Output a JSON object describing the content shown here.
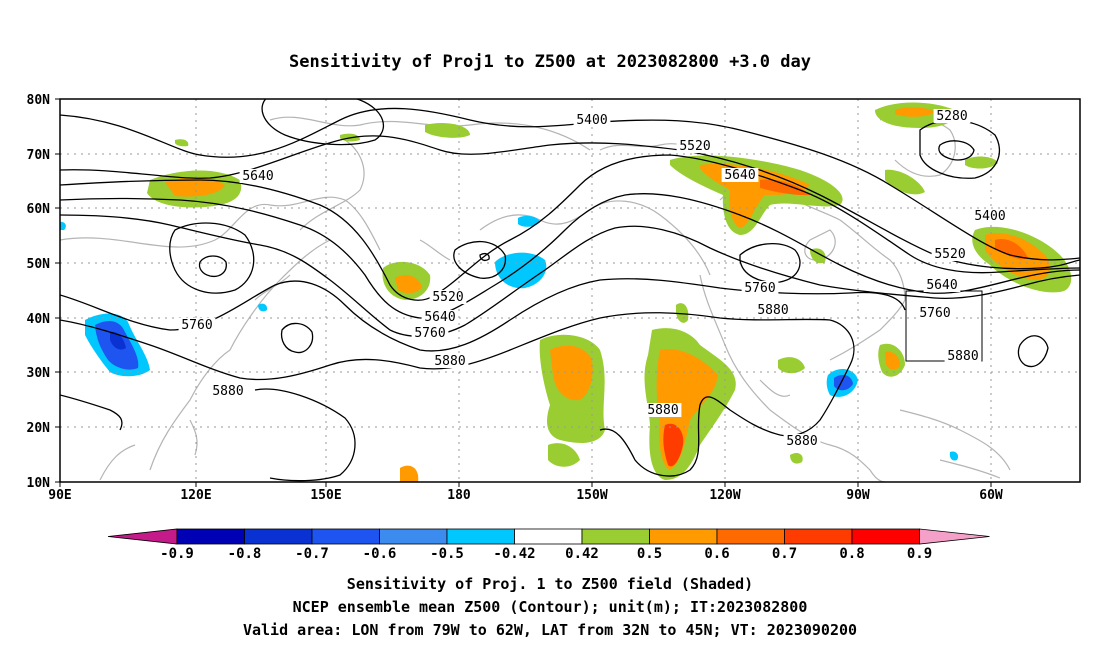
{
  "title": "Sensitivity of Proj1 to Z500 at 2023082800 +3.0 day",
  "lat_ticks": [
    "80N",
    "70N",
    "60N",
    "50N",
    "40N",
    "30N",
    "20N",
    "10N"
  ],
  "lon_ticks": [
    "90E",
    "120E",
    "150E",
    "180",
    "150W",
    "120W",
    "90W",
    "60W"
  ],
  "contour_labels": [
    {
      "id": "c1",
      "text": "5640"
    },
    {
      "id": "c2",
      "text": "5400"
    },
    {
      "id": "c3",
      "text": "5520"
    },
    {
      "id": "c4",
      "text": "5640"
    },
    {
      "id": "c5",
      "text": "5280"
    },
    {
      "id": "c6",
      "text": "5400"
    },
    {
      "id": "c7",
      "text": "5520"
    },
    {
      "id": "c8",
      "text": "5640"
    },
    {
      "id": "c9",
      "text": "5760"
    },
    {
      "id": "c10",
      "text": "5880"
    },
    {
      "id": "c11",
      "text": "5520"
    },
    {
      "id": "c12",
      "text": "5640"
    },
    {
      "id": "c13",
      "text": "5760"
    },
    {
      "id": "c14",
      "text": "5880"
    },
    {
      "id": "c15",
      "text": "5760"
    },
    {
      "id": "c16",
      "text": "5880"
    },
    {
      "id": "c17",
      "text": "5880"
    },
    {
      "id": "c18",
      "text": "5880"
    },
    {
      "id": "c19",
      "text": "5760"
    },
    {
      "id": "c20",
      "text": "5880"
    }
  ],
  "colorbar": {
    "colors": [
      "#c51b8a",
      "#0000b4",
      "#0a32d2",
      "#1e55f0",
      "#3c8cf0",
      "#00c8ff",
      "#ffffff",
      "#9acd32",
      "#ff9a00",
      "#ff6a00",
      "#ff3c00",
      "#ff0000",
      "#f4a0c8"
    ],
    "labels": [
      "-0.9",
      "-0.8",
      "-0.7",
      "-0.6",
      "-0.5",
      "-0.42",
      "0.42",
      "0.5",
      "0.6",
      "0.7",
      "0.8",
      "0.9"
    ]
  },
  "captions": [
    "Sensitivity of Proj. 1 to Z500 field (Shaded)",
    "NCEP ensemble mean Z500 (Contour); unit(m); IT:2023082800",
    "Valid area: LON from 79W to 62W, LAT from 32N to 45N; VT: 2023090200"
  ]
}
